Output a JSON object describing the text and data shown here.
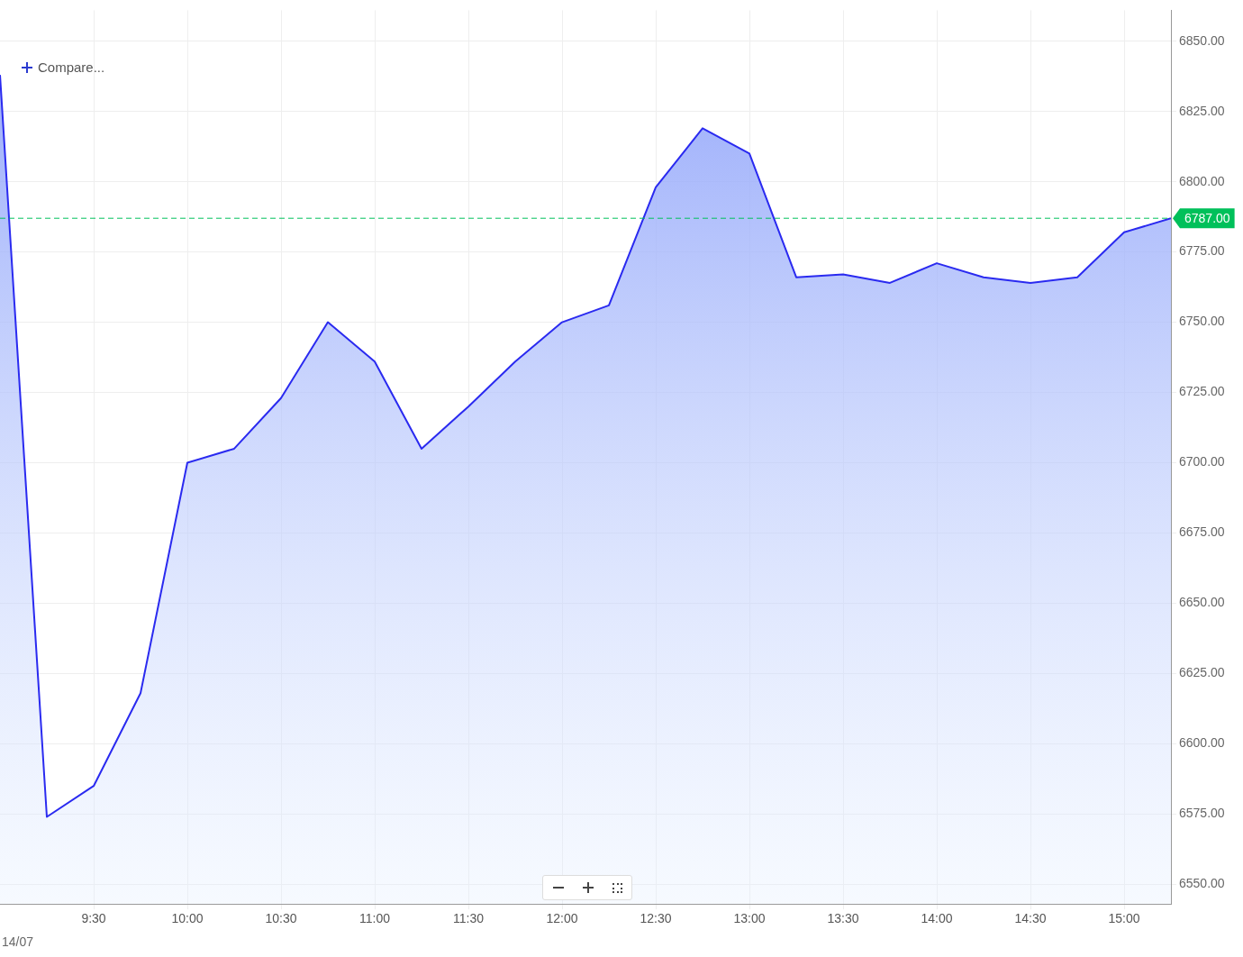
{
  "chart_data": {
    "type": "area",
    "x": [
      9.0,
      9.25,
      9.5,
      9.75,
      10.0,
      10.25,
      10.5,
      10.75,
      11.0,
      11.25,
      11.5,
      11.75,
      12.0,
      12.25,
      12.5,
      12.75,
      13.0,
      13.25,
      13.5,
      13.75,
      14.0,
      14.25,
      14.5,
      14.75,
      15.0,
      15.25
    ],
    "series": [
      {
        "color": "#2a2af0",
        "values": [
          6838,
          6574,
          6585,
          6618,
          6700,
          6705,
          6723,
          6750,
          6736,
          6705,
          6720,
          6736,
          6750,
          6756,
          6798,
          6819,
          6810,
          6766,
          6767,
          6764,
          6771,
          6766,
          6764,
          6766,
          6782,
          6787
        ]
      }
    ],
    "xlim": [
      9.0,
      15.25
    ],
    "xticks": [
      {
        "value": 9.5,
        "label": "9:30"
      },
      {
        "value": 10,
        "label": "10:00"
      },
      {
        "value": 10.5,
        "label": "10:30"
      },
      {
        "value": 11,
        "label": "11:00"
      },
      {
        "value": 11.5,
        "label": "11:30"
      },
      {
        "value": 12,
        "label": "12:00"
      },
      {
        "value": 12.5,
        "label": "12:30"
      },
      {
        "value": 13,
        "label": "13:00"
      },
      {
        "value": 13.5,
        "label": "13:30"
      },
      {
        "value": 14,
        "label": "14:00"
      },
      {
        "value": 14.5,
        "label": "14:30"
      },
      {
        "value": 15,
        "label": "15:00"
      }
    ],
    "ylim": [
      6543,
      6861
    ],
    "yticks": [
      {
        "value": 6550,
        "label": "6550.00"
      },
      {
        "value": 6575,
        "label": "6575.00"
      },
      {
        "value": 6600,
        "label": "6600.00"
      },
      {
        "value": 6625,
        "label": "6625.00"
      },
      {
        "value": 6650,
        "label": "6650.00"
      },
      {
        "value": 6675,
        "label": "6675.00"
      },
      {
        "value": 6700,
        "label": "6700.00"
      },
      {
        "value": 6725,
        "label": "6725.00"
      },
      {
        "value": 6750,
        "label": "6750.00"
      },
      {
        "value": 6775,
        "label": "6775.00"
      },
      {
        "value": 6800,
        "label": "6800.00"
      },
      {
        "value": 6825,
        "label": "6825.00"
      },
      {
        "value": 6850,
        "label": "6850.00"
      }
    ],
    "ref_lines": [
      {
        "axis": "y",
        "value": 6787,
        "label": "6787.00",
        "color": "#00c05a",
        "line_style": "dashed"
      }
    ],
    "annotations": [
      "Compare...",
      "14/07"
    ],
    "grid": true,
    "legend": false,
    "marker": "none",
    "line_style": "solid"
  }
}
